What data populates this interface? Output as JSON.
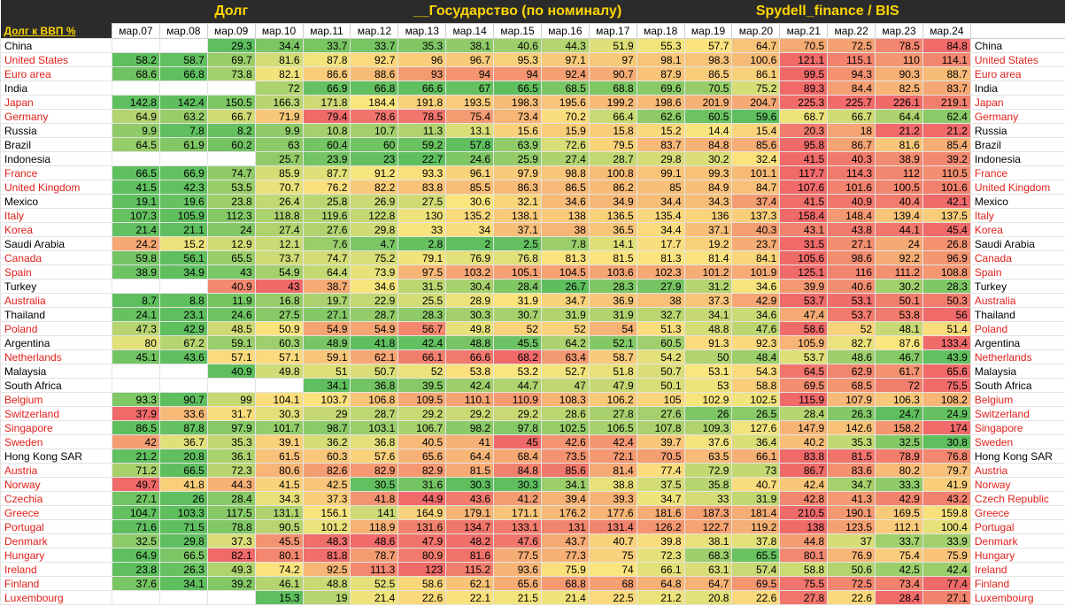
{
  "titles": [
    "Долг",
    "__Государство (по номиналу)",
    "Spydell_finance / BIS"
  ],
  "corner_label": "Долг к ВВП %",
  "chart_data": {
    "type": "table",
    "columns": [
      "мар.07",
      "мар.08",
      "мар.09",
      "мар.10",
      "мар.11",
      "мар.12",
      "мар.13",
      "мар.14",
      "мар.15",
      "мар.16",
      "мар.17",
      "мар.18",
      "мар.19",
      "мар.20",
      "мар.21",
      "мар.22",
      "мар.23",
      "мар.24"
    ],
    "color_scale": {
      "low": "#5fbf5f",
      "mid": "#fbe67e",
      "high": "#f06a6a"
    },
    "rows": [
      {
        "name": "China",
        "red": false,
        "values": [
          null,
          null,
          29.3,
          34.4,
          33.7,
          33.7,
          35.3,
          38.1,
          40.6,
          44.3,
          51.9,
          55.3,
          57.7,
          64.7,
          70.5,
          72.5,
          78.5,
          84.8
        ]
      },
      {
        "name": "United States",
        "red": true,
        "values": [
          58.2,
          58.7,
          69.7,
          81.6,
          87.8,
          92.7,
          96,
          96.7,
          95.3,
          97.1,
          97,
          98.1,
          98.3,
          100.6,
          121.1,
          115.1,
          110,
          114.1
        ]
      },
      {
        "name": "Euro area",
        "red": true,
        "values": [
          68.6,
          66.8,
          73.8,
          82.1,
          86.6,
          88.6,
          93,
          94,
          94,
          92.4,
          90.7,
          87.9,
          86.5,
          86.1,
          99.5,
          94.3,
          90.3,
          88.7
        ]
      },
      {
        "name": "India",
        "red": false,
        "values": [
          null,
          null,
          null,
          72,
          66.9,
          66.8,
          66.6,
          67,
          66.5,
          68.5,
          68.8,
          69.6,
          70.5,
          75.2,
          89.3,
          84.4,
          82.5,
          83.7
        ]
      },
      {
        "name": "Japan",
        "red": true,
        "values": [
          142.8,
          142.4,
          150.5,
          166.3,
          171.8,
          184.4,
          191.8,
          193.5,
          198.3,
          195.6,
          199.2,
          198.6,
          201.9,
          204.7,
          225.3,
          225.7,
          226.1,
          219.1
        ]
      },
      {
        "name": "Germany",
        "red": true,
        "values": [
          64.9,
          63.2,
          66.7,
          71.9,
          79.4,
          78.6,
          78.5,
          75.4,
          73.4,
          70.2,
          66.4,
          62.6,
          60.5,
          59.6,
          68.7,
          66.7,
          64.4,
          62.4
        ]
      },
      {
        "name": "Russia",
        "red": false,
        "values": [
          9.9,
          7.8,
          8.2,
          9.9,
          10.8,
          10.7,
          11.3,
          13.1,
          15.6,
          15.9,
          15.8,
          15.2,
          14.4,
          15.4,
          20.3,
          18,
          21.2,
          21.2
        ]
      },
      {
        "name": "Brazil",
        "red": false,
        "values": [
          64.5,
          61.9,
          60.2,
          63,
          60.4,
          60,
          59.2,
          57.8,
          63.9,
          72.6,
          79.5,
          83.7,
          84.8,
          85.6,
          95.8,
          86.7,
          81.6,
          85.4
        ]
      },
      {
        "name": "Indonesia",
        "red": false,
        "values": [
          null,
          null,
          null,
          25.7,
          23.9,
          23,
          22.7,
          24.6,
          25.9,
          27.4,
          28.7,
          29.8,
          30.2,
          32.4,
          41.5,
          40.3,
          38.9,
          39.2
        ]
      },
      {
        "name": "France",
        "red": true,
        "values": [
          66.5,
          66.9,
          74.7,
          85.9,
          87.7,
          91.2,
          93.3,
          96.1,
          97.9,
          98.8,
          100.8,
          99.1,
          99.3,
          101.1,
          117.7,
          114.3,
          112,
          110.5
        ]
      },
      {
        "name": "United Kingdom",
        "red": true,
        "values": [
          41.5,
          42.3,
          53.5,
          70.7,
          76.2,
          82.2,
          83.8,
          85.5,
          86.3,
          86.5,
          86.2,
          85,
          84.9,
          84.7,
          107.6,
          101.6,
          100.5,
          101.6
        ]
      },
      {
        "name": "Mexico",
        "red": false,
        "values": [
          19.1,
          19.6,
          23.8,
          26.4,
          25.8,
          26.9,
          27.5,
          30.6,
          32.1,
          34.6,
          34.9,
          34.4,
          34.3,
          37.4,
          41.5,
          40.9,
          40.4,
          42.1
        ]
      },
      {
        "name": "Italy",
        "red": true,
        "values": [
          107.3,
          105.9,
          112.3,
          118.8,
          119.6,
          122.8,
          130,
          135.2,
          138.1,
          138,
          136.5,
          135.4,
          136,
          137.3,
          158.4,
          148.4,
          139.4,
          137.5
        ]
      },
      {
        "name": "Korea",
        "red": true,
        "values": [
          21.4,
          21.1,
          24,
          27.4,
          27.6,
          29.8,
          33,
          34,
          37.1,
          38,
          36.5,
          34.4,
          37.1,
          40.3,
          43.1,
          43.8,
          44.1,
          45.4
        ]
      },
      {
        "name": "Saudi Arabia",
        "red": false,
        "values": [
          24.2,
          15.2,
          12.9,
          12.1,
          7.6,
          4.7,
          2.8,
          2,
          2.5,
          7.8,
          14.1,
          17.7,
          19.2,
          23.7,
          31.5,
          27.1,
          24,
          26.8
        ]
      },
      {
        "name": "Canada",
        "red": true,
        "values": [
          59.8,
          56.1,
          65.5,
          73.7,
          74.7,
          75.2,
          79.1,
          76.9,
          76.8,
          81.3,
          81.5,
          81.3,
          81.4,
          84.1,
          105.6,
          98.6,
          92.2,
          96.9
        ]
      },
      {
        "name": "Spain",
        "red": true,
        "values": [
          38.9,
          34.9,
          43,
          54.9,
          64.4,
          73.9,
          97.5,
          103.2,
          105.1,
          104.5,
          103.6,
          102.3,
          101.2,
          101.9,
          125.1,
          116,
          111.2,
          108.8
        ]
      },
      {
        "name": "Turkey",
        "red": false,
        "values": [
          null,
          null,
          40.9,
          43,
          38.7,
          34.6,
          31.5,
          30.4,
          28.4,
          26.7,
          28.3,
          27.9,
          31.2,
          34.6,
          39.9,
          40.6,
          30.2,
          28.3
        ]
      },
      {
        "name": "Australia",
        "red": true,
        "values": [
          8.7,
          8.8,
          11.9,
          16.8,
          19.7,
          22.9,
          25.5,
          28.9,
          31.9,
          34.7,
          36.9,
          38,
          37.3,
          42.9,
          53.7,
          53.1,
          50.1,
          50.3
        ]
      },
      {
        "name": "Thailand",
        "red": false,
        "values": [
          24.1,
          23.1,
          24.6,
          27.5,
          27.1,
          28.7,
          28.3,
          30.3,
          30.7,
          31.9,
          31.9,
          32.7,
          34.1,
          34.6,
          47.4,
          53.7,
          53.8,
          56
        ]
      },
      {
        "name": "Poland",
        "red": true,
        "values": [
          47.3,
          42.9,
          48.5,
          50.9,
          54.9,
          54.9,
          56.7,
          49.8,
          52,
          52,
          54,
          51.3,
          48.8,
          47.6,
          58.6,
          52,
          48.1,
          51.4
        ]
      },
      {
        "name": "Argentina",
        "red": false,
        "values": [
          80,
          67.2,
          59.1,
          60.3,
          48.9,
          41.8,
          42.4,
          48.8,
          45.5,
          64.2,
          52.1,
          60.5,
          91.3,
          92.3,
          105.9,
          82.7,
          87.6,
          133.4
        ]
      },
      {
        "name": "Netherlands",
        "red": true,
        "values": [
          45.1,
          43.6,
          57.1,
          57.1,
          59.1,
          62.1,
          66.1,
          66.6,
          68.2,
          63.4,
          58.7,
          54.2,
          50,
          48.4,
          53.7,
          48.6,
          46.7,
          43.9
        ]
      },
      {
        "name": "Malaysia",
        "red": false,
        "values": [
          null,
          null,
          40.9,
          49.8,
          51,
          50.7,
          52,
          53.8,
          53.2,
          52.7,
          51.8,
          50.7,
          53.1,
          54.3,
          64.5,
          62.9,
          61.7,
          65.6
        ]
      },
      {
        "name": "South Africa",
        "red": false,
        "values": [
          null,
          null,
          null,
          null,
          34.1,
          36.8,
          39.5,
          42.4,
          44.7,
          47,
          47.9,
          50.1,
          53,
          58.8,
          69.5,
          68.5,
          72,
          75.5
        ]
      },
      {
        "name": "Belgium",
        "red": true,
        "values": [
          93.3,
          90.7,
          99,
          104.1,
          103.7,
          106.8,
          109.5,
          110.1,
          110.9,
          108.3,
          106.2,
          105,
          102.9,
          102.5,
          115.9,
          107.9,
          106.3,
          108.2
        ]
      },
      {
        "name": "Switzerland",
        "red": true,
        "values": [
          37.9,
          33.6,
          31.7,
          30.3,
          29,
          28.7,
          29.2,
          29.2,
          29.2,
          28.6,
          27.8,
          27.6,
          26,
          26.5,
          28.4,
          26.3,
          24.7,
          24.9
        ]
      },
      {
        "name": "Singapore",
        "red": true,
        "values": [
          86.5,
          87.8,
          97.9,
          101.7,
          98.7,
          103.1,
          106.7,
          98.2,
          97.8,
          102.5,
          106.5,
          107.8,
          109.3,
          127.6,
          147.9,
          142.6,
          158.2,
          174
        ]
      },
      {
        "name": "Sweden",
        "red": true,
        "values": [
          42,
          36.7,
          35.3,
          39.1,
          36.2,
          36.8,
          40.5,
          41,
          45,
          42.6,
          42.4,
          39.7,
          37.6,
          36.4,
          40.2,
          35.3,
          32.5,
          30.8
        ]
      },
      {
        "name": "Hong Kong SAR",
        "red": false,
        "values": [
          21.2,
          20.8,
          36.1,
          61.5,
          60.3,
          57.6,
          65.6,
          64.4,
          68.4,
          73.5,
          72.1,
          70.5,
          63.5,
          66.1,
          83.8,
          81.5,
          78.9,
          76.8
        ]
      },
      {
        "name": "Austria",
        "red": true,
        "values": [
          71.2,
          66.5,
          72.3,
          80.6,
          82.6,
          82.9,
          82.9,
          81.5,
          84.8,
          85.6,
          81.4,
          77.4,
          72.9,
          73,
          86.7,
          83.6,
          80.2,
          79.7
        ]
      },
      {
        "name": "Norway",
        "red": true,
        "values": [
          49.7,
          41.8,
          44.3,
          41.5,
          42.5,
          30.5,
          31.6,
          30.3,
          30.3,
          34.1,
          38.8,
          37.5,
          35.8,
          40.7,
          42.4,
          34.7,
          33.3,
          41.9
        ]
      },
      {
        "name": "Czechia",
        "red": true,
        "values": [
          27.1,
          26,
          28.4,
          34.3,
          37.3,
          41.8,
          44.9,
          43.6,
          41.2,
          39.4,
          39.3,
          34.7,
          33,
          31.9,
          42.8,
          41.3,
          42.9,
          43.2
        ]
      },
      {
        "name": "Greece",
        "red": true,
        "values": [
          104.7,
          103.3,
          117.5,
          131.1,
          156.1,
          141,
          164.9,
          179.1,
          171.1,
          176.2,
          177.6,
          181.6,
          187.3,
          181.4,
          210.5,
          190.1,
          169.5,
          159.8
        ]
      },
      {
        "name": "Portugal",
        "red": true,
        "values": [
          71.6,
          71.5,
          78.8,
          90.5,
          101.2,
          118.9,
          131.6,
          134.7,
          133.1,
          131,
          131.4,
          126.2,
          122.7,
          119.2,
          138,
          123.5,
          112.1,
          100.4
        ]
      },
      {
        "name": "Denmark",
        "red": true,
        "values": [
          32.5,
          29.8,
          37.3,
          45.5,
          48.3,
          48.6,
          47.9,
          48.2,
          47.6,
          43.7,
          40.7,
          39.8,
          38.1,
          37.8,
          44.8,
          37,
          33.7,
          33.9
        ]
      },
      {
        "name": "Hungary",
        "red": true,
        "values": [
          64.9,
          66.5,
          82.1,
          80.1,
          81.8,
          78.7,
          80.9,
          81.6,
          77.5,
          77.3,
          75,
          72.3,
          68.3,
          65.5,
          80.1,
          76.9,
          75.4,
          75.9
        ]
      },
      {
        "name": "Ireland",
        "red": true,
        "values": [
          23.8,
          26.3,
          49.3,
          74.2,
          92.5,
          111.3,
          123,
          115.2,
          93.6,
          75.9,
          74,
          66.1,
          63.1,
          57.4,
          58.8,
          50.6,
          42.5,
          42.4
        ]
      },
      {
        "name": "Finland",
        "red": true,
        "values": [
          37.6,
          34.1,
          39.2,
          46.1,
          48.8,
          52.5,
          58.6,
          62.1,
          65.6,
          68.8,
          68,
          64.8,
          64.7,
          69.5,
          75.5,
          72.5,
          73.4,
          77.4
        ]
      },
      {
        "name": "Luxembourg",
        "red": true,
        "values": [
          null,
          null,
          null,
          15.3,
          19,
          21.4,
          22.6,
          22.1,
          21.5,
          21.4,
          22.5,
          21.2,
          20.8,
          22.6,
          27.8,
          22.6,
          28.4,
          27.1
        ]
      }
    ],
    "right_names": [
      "China",
      "United States",
      "Euro area",
      "India",
      "Japan",
      "Germany",
      "Russia",
      "Brazil",
      "Indonesia",
      "France",
      "United Kingdom",
      "Mexico",
      "Italy",
      "Korea",
      "Saudi Arabia",
      "Canada",
      "Spain",
      "Turkey",
      "Australia",
      "Thailand",
      "Poland",
      "Argentina",
      "Netherlands",
      "Malaysia",
      "South Africa",
      "Belgium",
      "Switzerland",
      "Singapore",
      "Sweden",
      "Hong Kong SAR",
      "Austria",
      "Norway",
      "Czech Republic",
      "Greece",
      "Portugal",
      "Denmark",
      "Hungary",
      "Ireland",
      "Finland",
      "Luxembourg"
    ]
  }
}
